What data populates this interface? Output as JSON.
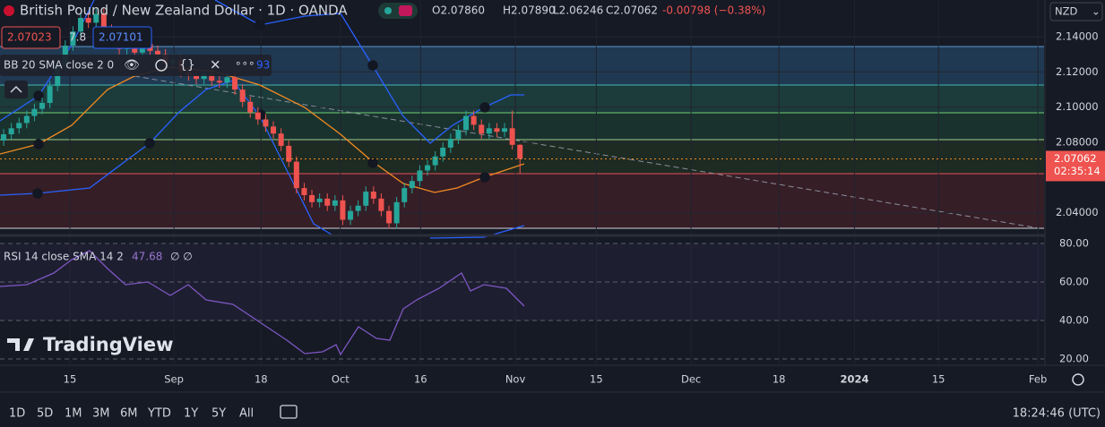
{
  "header": {
    "symbol": "British Pound / New Zealand Dollar · 1D · OANDA",
    "open": "O2.07860",
    "high": "H2.07890",
    "low": "L2.06246",
    "close": "C2.07062",
    "change": "-0.00798 (−0.38%)",
    "bid": "2.07023",
    "spread": "7.8",
    "ask": "2.07101",
    "indicator": "BB 20 SMA close 2 0",
    "indicator_value": "93",
    "currency": "NZD"
  },
  "chart_data": {
    "type": "candlestick",
    "up_color": "#26a69a",
    "down_color": "#ef5350",
    "xlim": [
      -0.47,
      135.0
    ],
    "ylim": [
      2.0276,
      2.1609
    ],
    "yticks": [
      {
        "value": 2.14,
        "label": "2.14000"
      },
      {
        "value": 2.12,
        "label": "2.12000"
      },
      {
        "value": 2.1,
        "label": "2.10000"
      },
      {
        "value": 2.08,
        "label": "2.08000"
      },
      {
        "value": 2.04,
        "label": "2.04000"
      }
    ],
    "xticks": [
      {
        "value": 8.6,
        "label": "15"
      },
      {
        "value": 22.1,
        "label": "Sep"
      },
      {
        "value": 33.4,
        "label": "18"
      },
      {
        "value": 43.7,
        "label": "Oct"
      },
      {
        "value": 54.1,
        "label": "16"
      },
      {
        "value": 66.4,
        "label": "Nov"
      },
      {
        "value": 76.9,
        "label": "15"
      },
      {
        "value": 89.2,
        "label": "Dec"
      },
      {
        "value": 100.6,
        "label": "18"
      },
      {
        "value": 110.4,
        "label": "2024"
      },
      {
        "value": 121.3,
        "label": "15"
      },
      {
        "value": 134.2,
        "label": "Feb"
      }
    ],
    "open": [
      2.081,
      2.0846,
      2.088,
      2.091,
      2.095,
      2.099,
      2.1024,
      2.112,
      2.123,
      2.135,
      2.143,
      2.1507,
      2.148,
      2.153,
      2.144,
      2.138,
      2.133,
      2.137,
      2.131,
      2.136,
      2.132,
      2.13,
      2.125,
      2.127,
      2.12,
      2.118,
      2.116,
      2.119,
      2.115,
      2.114,
      2.117,
      2.11,
      2.103,
      2.097,
      2.093,
      2.089,
      2.085,
      2.078,
      2.069,
      2.054,
      2.05,
      2.046,
      2.048,
      2.044,
      2.047,
      2.036,
      2.041,
      2.044,
      2.052,
      2.048,
      2.041,
      2.034,
      2.046,
      2.054,
      2.058,
      2.064,
      2.067,
      2.072,
      2.077,
      2.082,
      2.087,
      2.095,
      2.09,
      2.085,
      2.088,
      2.086,
      2.088,
      2.0786
    ],
    "high": [
      2.0876,
      2.091,
      2.094,
      2.098,
      2.102,
      2.1054,
      2.115,
      2.126,
      2.138,
      2.146,
      2.1537,
      2.1537,
      2.156,
      2.156,
      2.147,
      2.141,
      2.14,
      2.14,
      2.139,
      2.139,
      2.135,
      2.133,
      2.13,
      2.13,
      2.123,
      2.121,
      2.122,
      2.122,
      2.118,
      2.12,
      2.12,
      2.113,
      2.106,
      2.1,
      2.096,
      2.092,
      2.088,
      2.081,
      2.072,
      2.057,
      2.053,
      2.051,
      2.051,
      2.05,
      2.05,
      2.044,
      2.047,
      2.055,
      2.055,
      2.051,
      2.044,
      2.049,
      2.057,
      2.061,
      2.067,
      2.07,
      2.075,
      2.08,
      2.085,
      2.09,
      2.098,
      2.098,
      2.093,
      2.091,
      2.091,
      2.091,
      2.098,
      2.0789
    ],
    "low": [
      2.078,
      2.0816,
      2.085,
      2.088,
      2.092,
      2.096,
      2.0994,
      2.109,
      2.12,
      2.132,
      2.14,
      2.145,
      2.145,
      2.141,
      2.135,
      2.13,
      2.13,
      2.128,
      2.128,
      2.129,
      2.127,
      2.122,
      2.122,
      2.117,
      2.115,
      2.113,
      2.113,
      2.112,
      2.111,
      2.111,
      2.107,
      2.1,
      2.094,
      2.09,
      2.086,
      2.082,
      2.075,
      2.066,
      2.051,
      2.047,
      2.043,
      2.043,
      2.041,
      2.041,
      2.033,
      2.033,
      2.038,
      2.041,
      2.045,
      2.038,
      2.031,
      2.031,
      2.043,
      2.051,
      2.055,
      2.061,
      2.064,
      2.069,
      2.074,
      2.079,
      2.084,
      2.087,
      2.082,
      2.082,
      2.083,
      2.083,
      2.076,
      2.06246
    ],
    "close": [
      2.0846,
      2.088,
      2.091,
      2.095,
      2.099,
      2.1024,
      2.112,
      2.123,
      2.135,
      2.143,
      2.1507,
      2.148,
      2.153,
      2.144,
      2.138,
      2.133,
      2.137,
      2.131,
      2.136,
      2.132,
      2.13,
      2.125,
      2.127,
      2.12,
      2.118,
      2.116,
      2.119,
      2.115,
      2.114,
      2.117,
      2.11,
      2.103,
      2.097,
      2.093,
      2.089,
      2.085,
      2.078,
      2.069,
      2.054,
      2.05,
      2.046,
      2.048,
      2.044,
      2.047,
      2.036,
      2.041,
      2.044,
      2.052,
      2.048,
      2.041,
      2.034,
      2.046,
      2.054,
      2.058,
      2.064,
      2.067,
      2.072,
      2.077,
      2.082,
      2.087,
      2.095,
      2.09,
      2.085,
      2.088,
      2.086,
      2.088,
      2.0786,
      2.07062
    ],
    "last_price": {
      "value": 2.07062,
      "label": "2.07062"
    },
    "countdown": "02:35:14"
  },
  "rsi_pane": {
    "legend": "RSI 14 close SMA 14 2",
    "value": "47.68",
    "extra": "∅ ∅",
    "ylim": [
      16.74,
      83.26
    ],
    "yticks": [
      {
        "value": 80,
        "label": "80.00"
      },
      {
        "value": 60,
        "label": "60.00"
      },
      {
        "value": 40,
        "label": "40.00"
      },
      {
        "value": 20,
        "label": "20.00"
      }
    ]
  },
  "watermark": "TradingView",
  "toolbar": {
    "ranges": [
      "1D",
      "5D",
      "1M",
      "3M",
      "6M",
      "YTD",
      "1Y",
      "5Y",
      "All"
    ],
    "clock": "18:24:46 (UTC)"
  }
}
